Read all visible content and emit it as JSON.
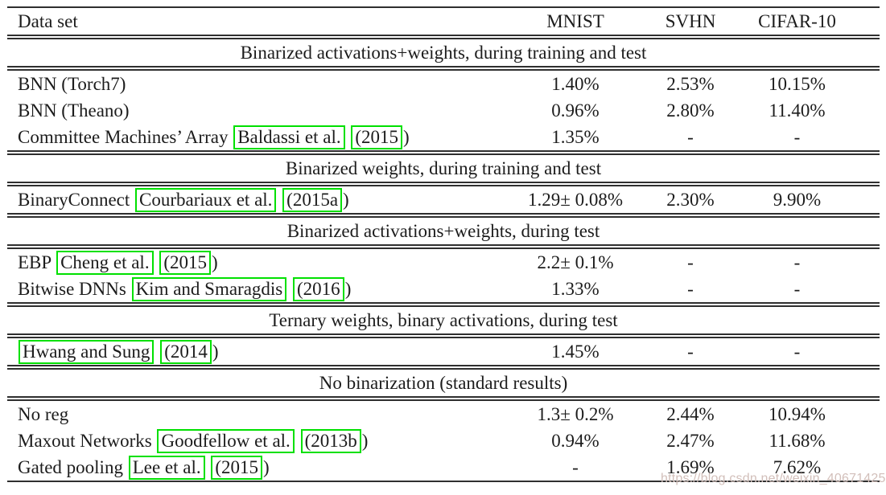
{
  "colors": {
    "citation_box": "#00e000",
    "rule": "#2f2f2f",
    "watermark": "#d2bfba"
  },
  "watermark": {
    "text": "https://blog.csdn.net/weixin_40671425"
  },
  "table": {
    "header": {
      "dataset_label": "Data set",
      "columns": [
        "MNIST",
        "SVHN",
        "CIFAR-10"
      ]
    },
    "sections": [
      {
        "title": "Binarized activations+weights, during training and test",
        "rows": [
          {
            "label": [
              {
                "t": "BNN (Torch7)"
              }
            ],
            "values": [
              "1.40%",
              "2.53%",
              "10.15%"
            ]
          },
          {
            "label": [
              {
                "t": "BNN (Theano)"
              }
            ],
            "values": [
              "0.96%",
              "2.80%",
              "11.40%"
            ]
          },
          {
            "label": [
              {
                "t": "Committee Machines’ Array "
              },
              {
                "t": "Baldassi et al.",
                "box": true
              },
              {
                "t": " "
              },
              {
                "t": "(2015",
                "box": true
              },
              {
                "t": ")"
              }
            ],
            "values": [
              "1.35%",
              "-",
              "-"
            ]
          }
        ]
      },
      {
        "title": "Binarized weights, during training and test",
        "rows": [
          {
            "label": [
              {
                "t": "BinaryConnect "
              },
              {
                "t": "Courbariaux et al.",
                "box": true
              },
              {
                "t": " "
              },
              {
                "t": "(2015a",
                "box": true
              },
              {
                "t": ")"
              }
            ],
            "values": [
              "1.29± 0.08%",
              "2.30%",
              "9.90%"
            ]
          }
        ]
      },
      {
        "title": "Binarized activations+weights, during test",
        "rows": [
          {
            "label": [
              {
                "t": "EBP "
              },
              {
                "t": "Cheng et al.",
                "box": true
              },
              {
                "t": " "
              },
              {
                "t": "(2015",
                "box": true
              },
              {
                "t": ")"
              }
            ],
            "values": [
              "2.2± 0.1%",
              "-",
              "-"
            ]
          },
          {
            "label": [
              {
                "t": "Bitwise DNNs "
              },
              {
                "t": "Kim and Smaragdis",
                "box": true
              },
              {
                "t": " "
              },
              {
                "t": "(2016",
                "box": true
              },
              {
                "t": ")"
              }
            ],
            "values": [
              "1.33%",
              "-",
              "-"
            ]
          }
        ]
      },
      {
        "title": "Ternary weights, binary activations, during test",
        "rows": [
          {
            "label": [
              {
                "t": "Hwang and Sung",
                "box": true
              },
              {
                "t": " "
              },
              {
                "t": "(2014",
                "box": true
              },
              {
                "t": ")"
              }
            ],
            "values": [
              "1.45%",
              "-",
              "-"
            ]
          }
        ]
      },
      {
        "title": "No binarization (standard results)",
        "rows": [
          {
            "label": [
              {
                "t": "No reg"
              }
            ],
            "values": [
              "1.3± 0.2%",
              "2.44%",
              "10.94%"
            ]
          },
          {
            "label": [
              {
                "t": "Maxout Networks "
              },
              {
                "t": "Goodfellow et al.",
                "box": true
              },
              {
                "t": " "
              },
              {
                "t": "(2013b",
                "box": true
              },
              {
                "t": ")"
              }
            ],
            "values": [
              "0.94%",
              "2.47%",
              "11.68%"
            ]
          },
          {
            "label": [
              {
                "t": "Gated pooling "
              },
              {
                "t": "Lee et al.",
                "box": true
              },
              {
                "t": " "
              },
              {
                "t": "(2015",
                "box": true
              },
              {
                "t": ")"
              }
            ],
            "values": [
              "-",
              "1.69%",
              "7.62%"
            ]
          }
        ]
      }
    ]
  }
}
